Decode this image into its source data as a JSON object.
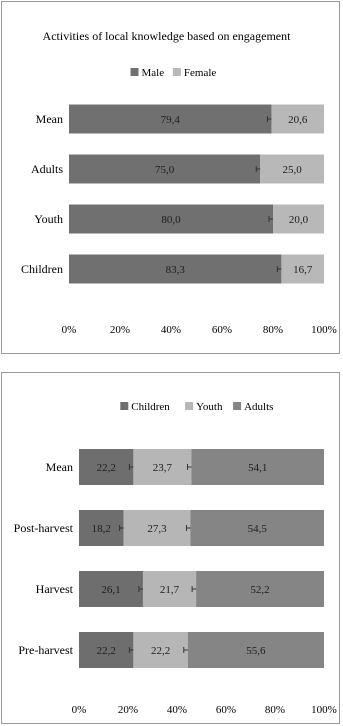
{
  "chart_data": [
    {
      "type": "bar",
      "orientation": "horizontal",
      "stacked": "percent",
      "title": "Activities of local knowledge based on engagement",
      "categories": [
        "Mean",
        "Adults",
        "Youth",
        "Children"
      ],
      "series": [
        {
          "name": "Male",
          "color": "#707070",
          "values": [
            79.4,
            75.0,
            80.0,
            83.3
          ],
          "labels": [
            "79,4",
            "75,0",
            "80,0",
            "83,3"
          ]
        },
        {
          "name": "Female",
          "color": "#b8b8b8",
          "values": [
            20.6,
            25.0,
            20.0,
            16.7
          ],
          "labels": [
            "20,6",
            "25,0",
            "20,0",
            "16,7"
          ]
        }
      ],
      "xlim": [
        0,
        100
      ],
      "xticks": [
        "0%",
        "20%",
        "40%",
        "60%",
        "80%",
        "100%"
      ],
      "legend_position": "top",
      "error_bars": true,
      "grid": false
    },
    {
      "type": "bar",
      "orientation": "horizontal",
      "stacked": "percent",
      "title": "",
      "categories": [
        "Mean",
        "Post-harvest",
        "Harvest",
        "Pre-harvest"
      ],
      "series": [
        {
          "name": "Children",
          "color": "#6e6e6e",
          "values": [
            22.2,
            18.2,
            26.1,
            22.2
          ],
          "labels": [
            "22,2",
            "18,2",
            "26,1",
            "22,2"
          ]
        },
        {
          "name": "Youth",
          "color": "#b6b6b6",
          "values": [
            23.7,
            27.3,
            21.7,
            22.2
          ],
          "labels": [
            "23,7",
            "27,3",
            "21,7",
            "22,2"
          ]
        },
        {
          "name": "Adults",
          "color": "#858585",
          "values": [
            54.1,
            54.5,
            52.2,
            55.6
          ],
          "labels": [
            "54,1",
            "54,5",
            "52,2",
            "55,6"
          ]
        }
      ],
      "xlim": [
        0,
        100
      ],
      "xticks": [
        "0%",
        "20%",
        "40%",
        "60%",
        "80%",
        "100%"
      ],
      "legend_position": "top",
      "error_bars": true,
      "grid": false
    }
  ]
}
